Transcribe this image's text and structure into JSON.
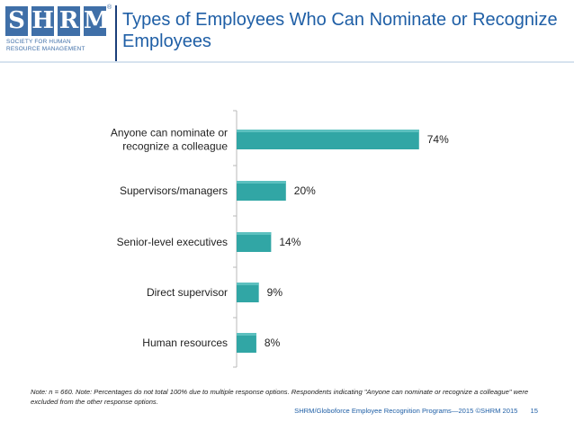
{
  "logo": {
    "letters": [
      "S",
      "H",
      "R",
      "M"
    ],
    "registered": "®",
    "subtitle_lines": [
      "SOCIETY FOR HUMAN",
      "RESOURCE MANAGEMENT"
    ]
  },
  "header": {
    "title": "Types of Employees Who Can Nominate or Recognize Employees"
  },
  "colors": {
    "bar": "#31a6a5",
    "title": "#1f5fa6",
    "logo": "#3f6fa8",
    "axis": "#b8b8b8"
  },
  "chart_data": {
    "type": "bar",
    "orientation": "horizontal",
    "categories": [
      [
        "Anyone can nominate or",
        "recognize a colleague"
      ],
      [
        "Supervisors/managers"
      ],
      [
        "Senior-level executives"
      ],
      [
        "Direct supervisor"
      ],
      [
        "Human resources"
      ]
    ],
    "values": [
      74,
      20,
      14,
      9,
      8
    ],
    "value_labels": [
      "74%",
      "20%",
      "14%",
      "9%",
      "8%"
    ],
    "xlim": [
      0,
      100
    ],
    "grid": false,
    "legend": "none"
  },
  "note": "Note: n = 660. Note: Percentages do not total 100% due to multiple response options. Respondents indicating \"Anyone can nominate or recognize a colleague\" were excluded from the other response options.",
  "footer": {
    "source": "SHRM/Globoforce Employee Recognition Programs—2015 ©SHRM 2015",
    "page": "15"
  }
}
